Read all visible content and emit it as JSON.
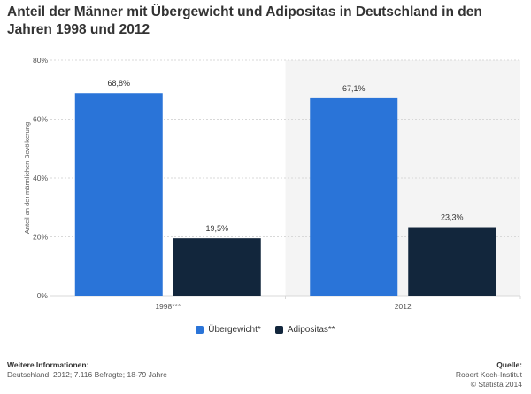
{
  "chart_data": {
    "type": "bar",
    "title": "Anteil der Männer mit Übergewicht und Adipositas in Deutschland in den Jahren 1998 und 2012",
    "ylabel": "Anteil an der männlichen Bevölkerung",
    "xlabel": "",
    "ylim": [
      0,
      80
    ],
    "yticks": [
      0,
      20,
      40,
      60,
      80
    ],
    "ytick_labels": [
      "0%",
      "20%",
      "40%",
      "60%",
      "80%"
    ],
    "categories": [
      "1998***",
      "2012"
    ],
    "series": [
      {
        "name": "Übergewicht*",
        "values": [
          68.8,
          67.1
        ],
        "labels": [
          "68,8%",
          "67,1%"
        ],
        "color": "#2a74d8"
      },
      {
        "name": "Adipositas**",
        "values": [
          19.5,
          23.3
        ],
        "labels": [
          "19,5%",
          "23,3%"
        ],
        "color": "#12263c"
      }
    ],
    "grid": true,
    "legend_position": "bottom"
  },
  "footer": {
    "info_heading": "Weitere Informationen:",
    "info_text": "Deutschland; 2012; 7.116 Befragte; 18-79 Jahre",
    "source_heading": "Quelle:",
    "source_text": "Robert Koch-Institut",
    "copyright": "© Statista 2014"
  },
  "colors": {
    "band": "#f4f4f4",
    "grid": "#d8d8d8",
    "axis_text": "#555555"
  }
}
